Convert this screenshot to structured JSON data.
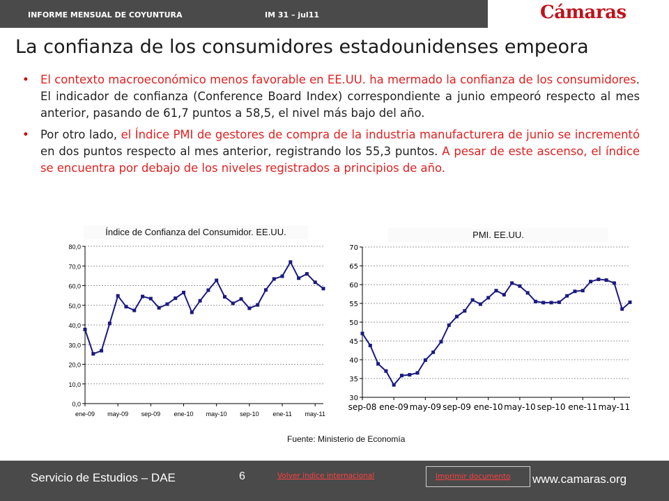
{
  "header": {
    "report": "INFORME MENSUAL DE COYUNTURA",
    "issue": "IM 31 – jul11",
    "logo": "Cámaras"
  },
  "title": "La confianza de los consumidores estadounidenses empeora",
  "bullets": [
    {
      "red_part": "El contexto macroeconómico menos favorable en EE.UU. ha mermado la confianza de los consumidores",
      "normal_part": ". El indicador de confianza (Conference Board Index) correspondiente a junio empeoró respecto al mes anterior, pasando de 61,7 puntos a 58,5, el nivel más bajo del año."
    },
    {
      "lead": "Por otro lado, ",
      "red_part": "el Índice PMI de gestores de compra de la industria manufacturera de junio se incrementó",
      "middle": " en dos puntos respecto al mes anterior, registrando los 55,3 puntos. ",
      "red_end": "A pesar de este ascenso, el índice se encuentra por debajo de los niveles registrados a principios de año."
    }
  ],
  "source": "Fuente: Ministerio de Economía",
  "footer": {
    "service": "Servicio de Estudios – DAE",
    "page": "6",
    "back_link": "Volver índice internacional",
    "print_link": "Imprimir documento",
    "website": "www.camaras.org"
  },
  "colors": {
    "accent": "#e02020",
    "series": "#1a1a80",
    "bar": "#4a4a4a"
  },
  "chart_data": [
    {
      "type": "line",
      "title": "Índice de Confianza del Consumidor. EE.UU.",
      "ylim": [
        0,
        80
      ],
      "yticks": [
        "0,0",
        "10,0",
        "20,0",
        "30,0",
        "40,0",
        "50,0",
        "60,0",
        "70,0",
        "80,0"
      ],
      "xticks": [
        {
          "label": "ene-09",
          "index": 0
        },
        {
          "label": "may-09",
          "index": 4
        },
        {
          "label": "sep-09",
          "index": 8
        },
        {
          "label": "ene-10",
          "index": 12
        },
        {
          "label": "may-10",
          "index": 16
        },
        {
          "label": "sep-10",
          "index": 20
        },
        {
          "label": "ene-11",
          "index": 24
        },
        {
          "label": "may-11",
          "index": 28
        }
      ],
      "grid": true,
      "marker": "square",
      "series": [
        {
          "values": [
            37.7,
            25.3,
            26.9,
            40.8,
            54.8,
            49.3,
            47.4,
            54.5,
            53.4,
            48.7,
            50.6,
            53.6,
            56.5,
            46.4,
            52.3,
            57.7,
            62.7,
            54.3,
            51.0,
            53.2,
            48.5,
            50.2,
            57.8,
            63.4,
            64.8,
            72.0,
            63.8,
            66.0,
            61.7,
            58.5
          ]
        }
      ]
    },
    {
      "type": "line",
      "title": "PMI. EE.UU.",
      "ylim": [
        30,
        70
      ],
      "yticks": [
        "30",
        "35",
        "40",
        "45",
        "50",
        "55",
        "60",
        "65",
        "70"
      ],
      "xticks": [
        {
          "label": "sep-08",
          "index": 0
        },
        {
          "label": "ene-09",
          "index": 4
        },
        {
          "label": "may-09",
          "index": 8
        },
        {
          "label": "sep-09",
          "index": 12
        },
        {
          "label": "ene-10",
          "index": 16
        },
        {
          "label": "may-10",
          "index": 20
        },
        {
          "label": "sep-10",
          "index": 24
        },
        {
          "label": "ene-11",
          "index": 28
        },
        {
          "label": "may-11",
          "index": 32
        }
      ],
      "grid": true,
      "marker": "square",
      "series": [
        {
          "values": [
            47.0,
            43.8,
            38.9,
            37.0,
            33.3,
            35.8,
            36.0,
            36.5,
            39.9,
            42.0,
            44.8,
            49.2,
            51.5,
            53.0,
            55.9,
            54.8,
            56.5,
            58.4,
            57.3,
            60.4,
            59.6,
            57.8,
            55.5,
            55.2,
            55.2,
            55.3,
            57.0,
            58.2,
            58.4,
            60.8,
            61.4,
            61.2,
            60.4,
            53.5,
            55.3
          ]
        }
      ]
    }
  ]
}
